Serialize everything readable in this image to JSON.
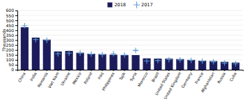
{
  "chart_data": {
    "type": "bar",
    "categories": [
      "China",
      "India",
      "Romania",
      "Viet Nam",
      "Ukraine",
      "Mexico",
      "Poland",
      "Iraq",
      "Philippines",
      "Tajik",
      "Syria",
      "Morocco",
      "Brazil",
      "United States",
      "United Kingdom",
      "Germany",
      "France",
      "Afghanistan",
      "Russia",
      "Cuba"
    ],
    "series": [
      {
        "name": "2018",
        "type": "bar",
        "color": "#1c1c5c",
        "values": [
          430,
          325,
          305,
          185,
          190,
          172,
          162,
          158,
          152,
          148,
          148,
          115,
          112,
          112,
          108,
          100,
          92,
          88,
          80,
          72
        ]
      },
      {
        "name": "2017",
        "type": "scatter",
        "marker": "plus",
        "color": "#5b9bd5",
        "values": [
          445,
          305,
          298,
          162,
          168,
          168,
          158,
          152,
          162,
          148,
          195,
          88,
          93,
          102,
          100,
          95,
          87,
          80,
          68,
          60
        ]
      }
    ],
    "ylabel": "Thousands",
    "ylim": [
      0,
      600
    ],
    "yticks": [
      0,
      50,
      100,
      150,
      200,
      250,
      300,
      350,
      400,
      450,
      500,
      550,
      600
    ],
    "grid": true,
    "legend": "top"
  }
}
